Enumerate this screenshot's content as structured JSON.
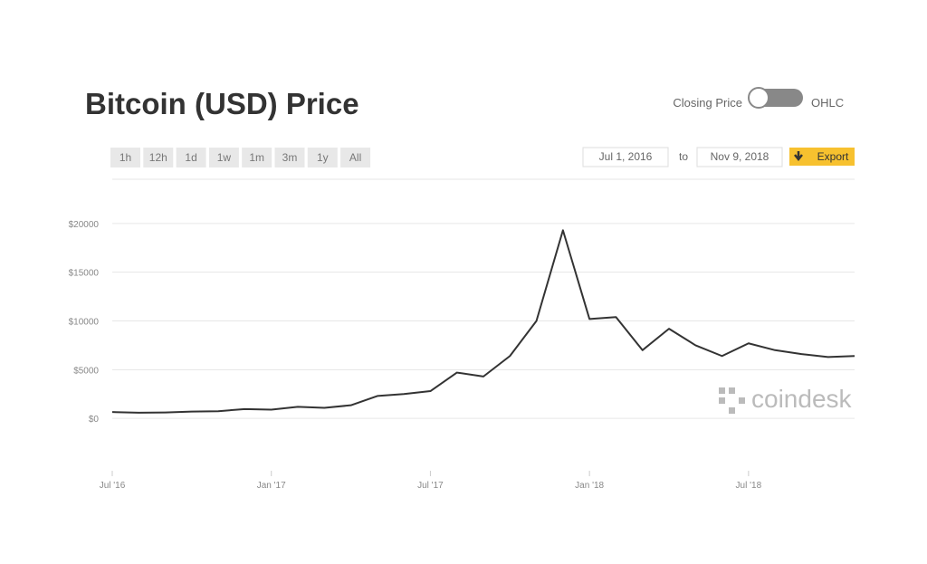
{
  "ui": {
    "title": "Bitcoin (USD) Price",
    "toggle_left": "Closing Price",
    "toggle_right": "OHLC",
    "ranges": [
      "1h",
      "12h",
      "1d",
      "1w",
      "1m",
      "3m",
      "1y",
      "All"
    ],
    "date_from": "Jul 1, 2016",
    "date_sep": "to",
    "date_to": "Nov 9, 2018",
    "export": "Export",
    "watermark": "coindesk"
  },
  "chart_data": {
    "type": "line",
    "color": "#333333",
    "grid": true,
    "x": [
      "2016-07",
      "2016-08",
      "2016-09",
      "2016-10",
      "2016-11",
      "2016-12",
      "2017-01",
      "2017-02",
      "2017-03",
      "2017-04",
      "2017-05",
      "2017-06",
      "2017-07",
      "2017-08",
      "2017-09",
      "2017-10",
      "2017-11",
      "2017-12",
      "2018-01",
      "2018-02",
      "2018-03",
      "2018-04",
      "2018-05",
      "2018-06",
      "2018-07",
      "2018-08",
      "2018-09",
      "2018-10",
      "2018-11"
    ],
    "values": [
      650,
      580,
      610,
      700,
      740,
      960,
      900,
      1190,
      1080,
      1350,
      2300,
      2500,
      2800,
      4700,
      4300,
      6400,
      10000,
      19300,
      10200,
      10400,
      7000,
      9200,
      7500,
      6400,
      7700,
      7000,
      6600,
      6300,
      6400
    ],
    "xlim": [
      "2016-07",
      "2018-11"
    ],
    "xticks": [
      {
        "value": "2016-07",
        "label": "Jul '16"
      },
      {
        "value": "2017-01",
        "label": "Jan '17"
      },
      {
        "value": "2017-07",
        "label": "Jul '17"
      },
      {
        "value": "2018-01",
        "label": "Jan '18"
      },
      {
        "value": "2018-07",
        "label": "Jul '18"
      }
    ],
    "ylim": [
      -5000,
      25000
    ],
    "yticks": [
      {
        "value": 0,
        "label": "$0"
      },
      {
        "value": 5000,
        "label": "$5000"
      },
      {
        "value": 10000,
        "label": "$10000"
      },
      {
        "value": 15000,
        "label": "$15000"
      },
      {
        "value": 20000,
        "label": "$20000"
      }
    ]
  }
}
